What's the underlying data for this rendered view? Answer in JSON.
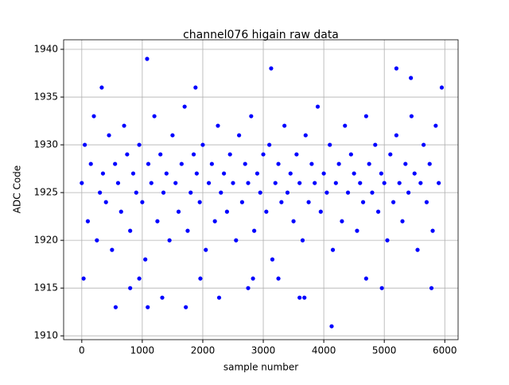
{
  "chart_data": {
    "type": "scatter",
    "title": "channel076 higain raw data",
    "x_label": "sample number",
    "y_label": "ADC Code",
    "color": "#0000ff",
    "grid": true,
    "xlim": [
      -300,
      6220
    ],
    "ylim": [
      1909.6,
      1941
    ],
    "xticks": [
      0,
      1000,
      2000,
      3000,
      4000,
      5000,
      6000
    ],
    "yticks": [
      1910,
      1915,
      1920,
      1925,
      1930,
      1935,
      1940
    ],
    "x": [
      0,
      50,
      100,
      150,
      200,
      250,
      300,
      350,
      400,
      450,
      500,
      550,
      600,
      650,
      700,
      750,
      800,
      850,
      900,
      950,
      1000,
      1050,
      1100,
      1150,
      1200,
      1250,
      1300,
      1350,
      1400,
      1450,
      1500,
      1550,
      1600,
      1650,
      1700,
      1750,
      1800,
      1850,
      1900,
      1950,
      2000,
      2050,
      2100,
      2150,
      2200,
      2250,
      2300,
      2350,
      2400,
      2450,
      2500,
      2550,
      2600,
      2650,
      2700,
      2750,
      2800,
      2850,
      2900,
      2950,
      3000,
      3050,
      3100,
      3150,
      3200,
      3250,
      3300,
      3350,
      3400,
      3450,
      3500,
      3550,
      3600,
      3650,
      3700,
      3750,
      3800,
      3850,
      3900,
      3950,
      4000,
      4050,
      4100,
      4150,
      4200,
      4250,
      4300,
      4350,
      4400,
      4450,
      4500,
      4550,
      4600,
      4650,
      4700,
      4750,
      4800,
      4850,
      4900,
      4950,
      5000,
      5050,
      5100,
      5150,
      5200,
      5250,
      5300,
      5350,
      5400,
      5450,
      5500,
      5550,
      5600,
      5650,
      5700,
      5750,
      5800,
      5850,
      5900,
      1080,
      3130,
      5200,
      4130,
      560,
      1090,
      1720,
      2270,
      1330,
      3600,
      3680,
      4960,
      800,
      2750,
      5780,
      30,
      950,
      1960,
      2830,
      3250,
      4700,
      5950,
      330,
      1880,
      5440
    ],
    "values": [
      1926,
      1930,
      1922,
      1928,
      1933,
      1920,
      1925,
      1927,
      1924,
      1931,
      1919,
      1928,
      1926,
      1923,
      1932,
      1929,
      1921,
      1927,
      1925,
      1930,
      1924,
      1918,
      1928,
      1926,
      1933,
      1922,
      1929,
      1925,
      1927,
      1920,
      1931,
      1926,
      1923,
      1928,
      1934,
      1921,
      1925,
      1929,
      1927,
      1924,
      1930,
      1919,
      1926,
      1928,
      1922,
      1932,
      1925,
      1927,
      1923,
      1929,
      1926,
      1920,
      1931,
      1924,
      1928,
      1926,
      1933,
      1921,
      1927,
      1925,
      1929,
      1923,
      1930,
      1918,
      1926,
      1928,
      1924,
      1932,
      1925,
      1927,
      1922,
      1929,
      1926,
      1920,
      1931,
      1924,
      1928,
      1926,
      1934,
      1923,
      1927,
      1925,
      1930,
      1919,
      1926,
      1928,
      1922,
      1932,
      1925,
      1929,
      1927,
      1921,
      1926,
      1924,
      1933,
      1928,
      1925,
      1930,
      1923,
      1927,
      1926,
      1920,
      1929,
      1924,
      1931,
      1926,
      1922,
      1928,
      1925,
      1933,
      1927,
      1919,
      1926,
      1930,
      1924,
      1928,
      1921,
      1932,
      1926,
      1939,
      1938,
      1938,
      1911,
      1913,
      1913,
      1913,
      1914,
      1914,
      1914,
      1914,
      1915,
      1915,
      1915,
      1915,
      1916,
      1916,
      1916,
      1916,
      1916,
      1916,
      1936,
      1936,
      1936,
      1937
    ]
  }
}
